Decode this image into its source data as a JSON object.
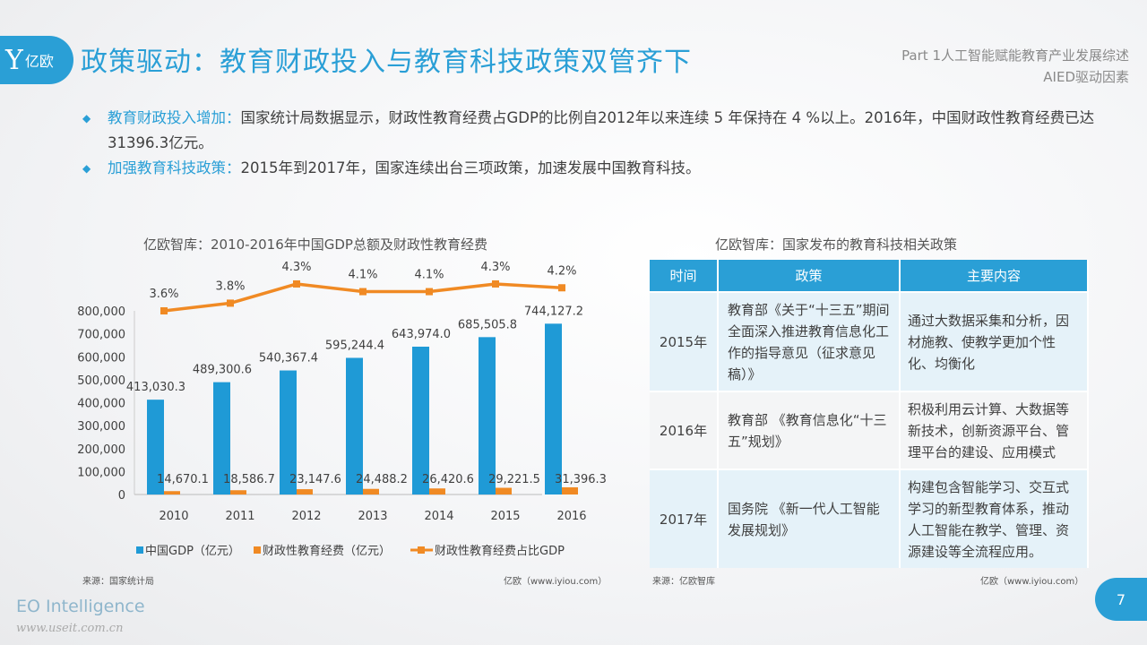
{
  "logo": {
    "text": "亿欧",
    "glyph": "Y"
  },
  "header": {
    "title": "政策驱动：教育财政投入与教育科技政策双管齐下",
    "part": "Part 1人工智能赋能教育产业发展综述",
    "section": "AIED驱动因素"
  },
  "bullets": [
    {
      "highlight": "教育财政投入增加：",
      "text": "国家统计局数据显示，财政性教育经费占GDP的比例自2012年以来连续 5 年保持在 4 %以上。2016年，中国财政性教育经费已达31396.3亿元。"
    },
    {
      "highlight": "加强教育科技政策：",
      "text": "2015年到2017年，国家连续出台三项政策，加速发展中国教育科技。"
    }
  ],
  "chart_data": {
    "type": "bar+line",
    "title": "亿欧智库：2010-2016年中国GDP总额及财政性教育经费",
    "categories": [
      "2010",
      "2011",
      "2012",
      "2013",
      "2014",
      "2015",
      "2016"
    ],
    "ylim": [
      0,
      800000
    ],
    "yticks": [
      "0",
      "100,000",
      "200,000",
      "300,000",
      "400,000",
      "500,000",
      "600,000",
      "700,000",
      "800,000"
    ],
    "series": [
      {
        "name": "中国GDP（亿元）",
        "kind": "bar",
        "color": "#1f9ad6",
        "values": [
          413030.3,
          489300.6,
          540367.4,
          595244.4,
          643974.0,
          685505.8,
          744127.2
        ],
        "labels": [
          "413,030.3",
          "489,300.6",
          "540,367.4",
          "595,244.4",
          "643,974.0",
          "685,505.8",
          "744,127.2"
        ]
      },
      {
        "name": "财政性教育经费（亿元）",
        "kind": "bar",
        "color": "#f08a24",
        "values": [
          14670.1,
          18586.7,
          23147.6,
          24488.2,
          26420.6,
          29221.5,
          31396.3
        ],
        "labels": [
          "14,670.1",
          "18,586.7",
          "23,147.6",
          "24,488.2",
          "26,420.6",
          "29,221.5",
          "31,396.3"
        ]
      },
      {
        "name": "财政性教育经费占比GDP",
        "kind": "line",
        "color": "#f08a24",
        "values": [
          3.6,
          3.8,
          4.3,
          4.1,
          4.1,
          4.3,
          4.2
        ],
        "labels": [
          "3.6%",
          "3.8%",
          "4.3%",
          "4.1%",
          "4.1%",
          "4.3%",
          "4.2%"
        ]
      }
    ],
    "legend": "bottom",
    "source": "来源：国家统计局",
    "credit": "亿欧（www.iyiou.com）"
  },
  "table": {
    "title": "亿欧智库：国家发布的教育科技相关政策",
    "headers": [
      "时间",
      "政策",
      "主要内容"
    ],
    "rows": [
      {
        "year": "2015年",
        "policy": "教育部《关于“十三五”期间全面深入推进教育信息化工作的指导意见（征求意见稿）》",
        "content": "通过大数据采集和分析，因材施教、使教学更加个性化、均衡化"
      },
      {
        "year": "2016年",
        "policy": "教育部 《教育信息化“十三五”规划》",
        "content": "积极利用云计算、大数据等新技术，创新资源平台、管理平台的建设、应用模式"
      },
      {
        "year": "2017年",
        "policy": " 国务院 《新一代人工智能发展规划》",
        "content": "构建包含智能学习、交互式学习的新型教育体系，推动人工智能在教学、管理、资源建设等全流程应用。"
      }
    ],
    "source": "来源：亿欧智库",
    "credit": "亿欧（www.iyiou.com）"
  },
  "footer": {
    "brand": "EO Intelligence",
    "watermark": "www.useit.com.cn",
    "page": "7"
  },
  "colors": {
    "accent": "#2a9fd6",
    "orange": "#f08a24"
  }
}
